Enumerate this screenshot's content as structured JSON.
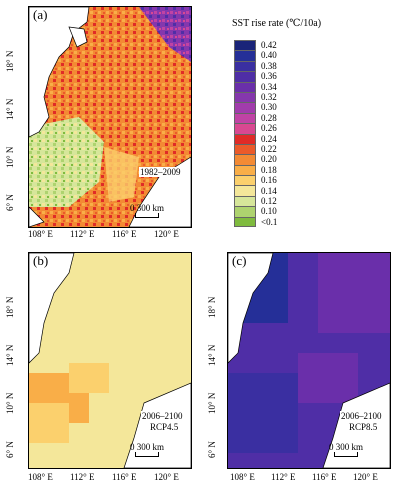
{
  "legend": {
    "title": "SST rise rate (℃/10a)",
    "items": [
      {
        "label": "0.42",
        "color": "#1a2479"
      },
      {
        "label": "0.40",
        "color": "#252f98"
      },
      {
        "label": "0.38",
        "color": "#3a2fa1"
      },
      {
        "label": "0.36",
        "color": "#4f2ea6"
      },
      {
        "label": "0.34",
        "color": "#6a2faa"
      },
      {
        "label": "0.32",
        "color": "#8537ad"
      },
      {
        "label": "0.30",
        "color": "#a13cac"
      },
      {
        "label": "0.28",
        "color": "#c043a5"
      },
      {
        "label": "0.26",
        "color": "#d94891"
      },
      {
        "label": "0.24",
        "color": "#e02b27"
      },
      {
        "label": "0.22",
        "color": "#eb5a2a"
      },
      {
        "label": "0.20",
        "color": "#f38a34"
      },
      {
        "label": "0.18",
        "color": "#f9ae48"
      },
      {
        "label": "0.16",
        "color": "#fbd06d"
      },
      {
        "label": "0.14",
        "color": "#f4e79a"
      },
      {
        "label": "0.12",
        "color": "#d6e69a"
      },
      {
        "label": "0.10",
        "color": "#aed36f"
      },
      {
        "label": "<0.1",
        "color": "#7fbb3e"
      }
    ]
  },
  "panels": [
    {
      "label": "(a)",
      "period": "1982–2009",
      "scenario": "",
      "scale": "300 km"
    },
    {
      "label": "(b)",
      "period": "2006–2100",
      "scenario": "RCP4.5",
      "scale": "300 km"
    },
    {
      "label": "(c)",
      "period": "2006–2100",
      "scenario": "RCP8.5",
      "scale": "300 km"
    }
  ],
  "axes": {
    "lat": [
      "18° N",
      "14° N",
      "10° N",
      "6° N"
    ],
    "lon": [
      "108° E",
      "112° E",
      "116° E",
      "120° E"
    ]
  },
  "colors": {
    "land": "#ffffff",
    "coast": "#000000"
  }
}
